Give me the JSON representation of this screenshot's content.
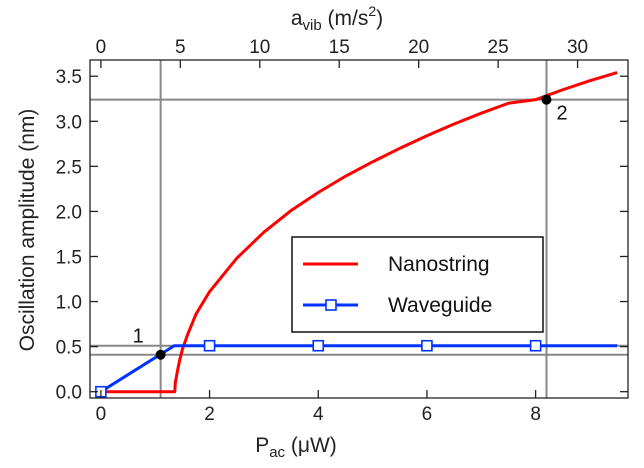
{
  "chart_data": {
    "type": "line",
    "xlabel": {
      "main": "P",
      "sub": "ac",
      "unit": " (μW)"
    },
    "x2label": {
      "main": "a",
      "sub": "vib",
      "unit_pre": " (m/s",
      "sup": "2",
      "unit_post": ")"
    },
    "ylabel": "Oscillation amplitude (nm)",
    "xlim": [
      -0.2,
      9.7
    ],
    "ylim": [
      -0.07,
      3.68
    ],
    "x_ticks": [
      0,
      2,
      4,
      6,
      8
    ],
    "y_ticks": [
      0.0,
      0.5,
      1.0,
      1.5,
      2.0,
      2.5,
      3.0,
      3.5
    ],
    "y_tick_labels": [
      "0.0",
      "0.5",
      "1.0",
      "1.5",
      "2.0",
      "2.5",
      "3.0",
      "3.5"
    ],
    "x2_ticks": [
      0,
      5,
      10,
      15,
      20,
      25,
      30
    ],
    "x2_per_x": 3.42,
    "legend_position": "center-right",
    "grid": false,
    "series": [
      {
        "name": "Nanostring",
        "color": "#ff0000",
        "marker": "none",
        "x": [
          0,
          1.36,
          1.37,
          1.4,
          1.45,
          1.5,
          1.6,
          1.75,
          2.0,
          2.5,
          3.0,
          3.5,
          4.0,
          4.5,
          5.0,
          5.5,
          6.0,
          6.5,
          7.0,
          7.5,
          8.0,
          8.5,
          9.0,
          9.5
        ],
        "y": [
          0,
          0,
          0.1,
          0.2,
          0.35,
          0.47,
          0.64,
          0.86,
          1.11,
          1.48,
          1.77,
          2.01,
          2.21,
          2.39,
          2.55,
          2.7,
          2.84,
          2.97,
          3.09,
          3.2,
          3.24,
          3.35,
          3.45,
          3.54
        ]
      },
      {
        "name": "Waveguide",
        "color": "#0033ff",
        "marker": "square",
        "x": [
          0,
          1.35,
          9.5
        ],
        "y": [
          0,
          0.51,
          0.51
        ],
        "marker_x": [
          0,
          2.0,
          4.0,
          6.0,
          8.0
        ],
        "marker_y": [
          0,
          0.51,
          0.51,
          0.51,
          0.51
        ]
      }
    ],
    "reference_lines": {
      "vertical": [
        1.1,
        8.2
      ],
      "horizontal": [
        0.41,
        0.51,
        3.24
      ],
      "color": "#888888"
    },
    "annotations": [
      {
        "label": "1",
        "x": 1.1,
        "y": 0.41
      },
      {
        "label": "2",
        "x": 8.2,
        "y": 3.24
      }
    ]
  }
}
